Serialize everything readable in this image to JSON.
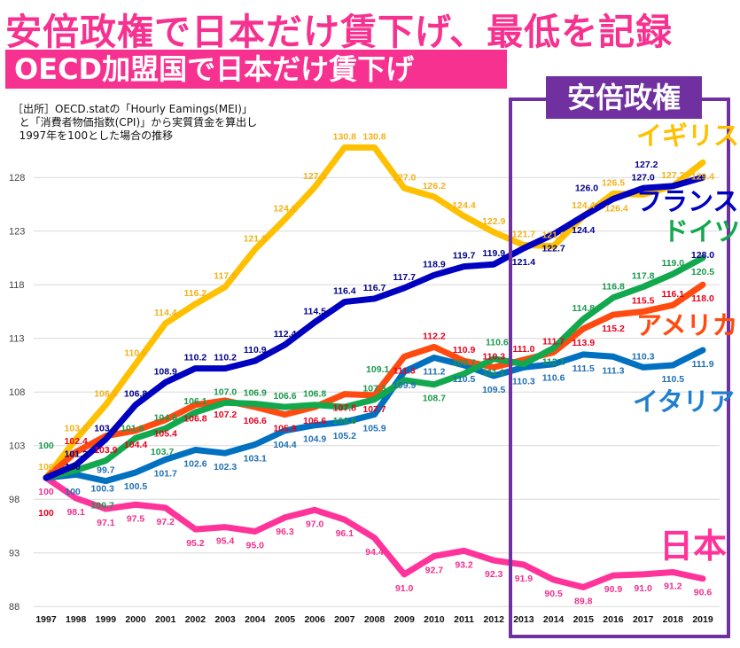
{
  "header": {
    "title": "安倍政権で日本だけ賃下げ、最低を記録",
    "subtitle": "OECD加盟国で日本だけ賃下げ",
    "note": "［出所］OECD.statの「Hourly Eamings(MEI)」\n  と「消費者物価指数(CPI)」から実質賃金を算出し\n  1997年を100とした場合の推移",
    "abe_label": "安倍政権"
  },
  "chart_data": {
    "type": "line",
    "title": "安倍政権で日本だけ賃下げ、最低を記録",
    "xlabel": "",
    "ylabel": "",
    "ylim": [
      88,
      131
    ],
    "yticks": [
      88,
      93,
      98,
      103,
      108,
      113,
      118,
      123,
      128
    ],
    "grid": true,
    "categories": [
      "1997",
      "1998",
      "1999",
      "2000",
      "2001",
      "2002",
      "2003",
      "2004",
      "2005",
      "2006",
      "2007",
      "2008",
      "2009",
      "2010",
      "2011",
      "2012",
      "2013",
      "2014",
      "2015",
      "2016",
      "2017",
      "2018",
      "2019"
    ],
    "highlight_range": [
      "2013",
      "2019"
    ],
    "series": [
      {
        "name": "イギリス",
        "color": "#ffc000",
        "label_color": "#f2b21b",
        "values": [
          100,
          103.6,
          106.8,
          110.6,
          114.4,
          116.2,
          117.8,
          121.3,
          124.1,
          127.1,
          130.8,
          130.8,
          127.0,
          126.2,
          124.4,
          122.9,
          121.7,
          121.6,
          124.4,
          126.5,
          126.4,
          127.2,
          129.4
        ]
      },
      {
        "name": "フランス",
        "color": "#0000c0",
        "label_color": "#00008b",
        "values": [
          100,
          101.2,
          103.6,
          106.8,
          108.9,
          110.2,
          110.2,
          110.9,
          112.4,
          114.5,
          116.4,
          116.7,
          117.7,
          118.9,
          119.7,
          119.9,
          121.4,
          122.7,
          124.4,
          126.0,
          127.0,
          127.2,
          128.0
        ]
      },
      {
        "name": "ドイツ",
        "color": "#12a84d",
        "label_color": "#1a9a4c",
        "values": [
          100,
          100.7,
          101.6,
          103.7,
          104.6,
          106.1,
          107.0,
          106.9,
          106.6,
          106.8,
          106.6,
          107.3,
          109.1,
          108.7,
          109.7,
          111.1,
          110.6,
          112.1,
          114.8,
          116.8,
          117.8,
          119.0,
          120.5
        ]
      },
      {
        "name": "アメリカ",
        "color": "#ff4a10",
        "label_color": "#e8001c",
        "values": [
          100,
          102.4,
          103.9,
          104.4,
          105.4,
          106.8,
          107.2,
          106.6,
          105.9,
          106.6,
          107.8,
          107.7,
          111.3,
          112.2,
          110.9,
          110.3,
          111.0,
          111.7,
          113.9,
          115.2,
          115.5,
          116.1,
          118.0
        ]
      },
      {
        "name": "イタリア",
        "color": "#0070c0",
        "label_color": "#1f6fb5",
        "values": [
          100,
          100.3,
          99.7,
          100.5,
          101.7,
          102.6,
          102.3,
          103.1,
          104.4,
          104.9,
          105.2,
          105.9,
          109.9,
          111.2,
          110.5,
          109.5,
          110.3,
          110.6,
          111.5,
          111.3,
          110.3,
          110.5,
          111.9
        ]
      },
      {
        "name": "日本",
        "color": "#ff3399",
        "label_color": "#f0308f",
        "values": [
          100,
          98.1,
          97.1,
          97.5,
          97.2,
          95.2,
          95.4,
          95.0,
          96.3,
          97.0,
          96.1,
          94.4,
          91.0,
          92.7,
          93.2,
          92.3,
          91.9,
          90.5,
          89.8,
          90.9,
          91.0,
          91.2,
          90.6
        ]
      }
    ]
  }
}
